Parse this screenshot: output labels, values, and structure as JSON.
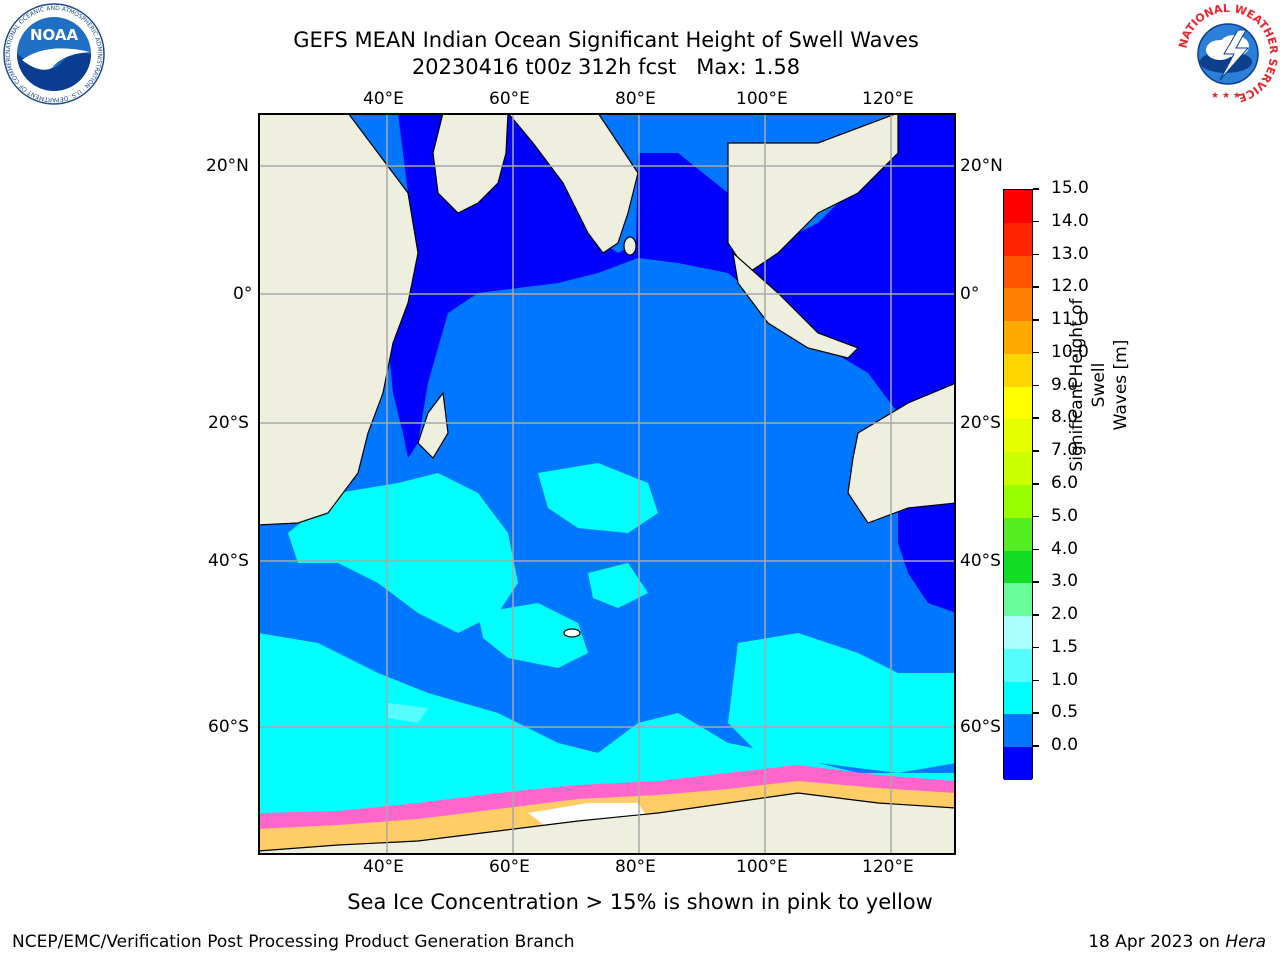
{
  "title": {
    "line1": "GEFS MEAN Indian Ocean Significant Height of Swell Waves",
    "line2": "20230416 t00z 312h fcst   Max: 1.58"
  },
  "map": {
    "lon_range": [
      20,
      130
    ],
    "lat_range": [
      -72,
      27
    ],
    "lon_ticks": [
      "40°E",
      "60°E",
      "80°E",
      "100°E",
      "120°E"
    ],
    "lat_ticks": [
      "20°N",
      "0°",
      "20°S",
      "40°S",
      "60°S"
    ],
    "land_color": "#efefdf",
    "sea_ice_colors": [
      "#ff66cc",
      "#ff99cc",
      "#ffcc66",
      "#ffd93d",
      "#ffffff"
    ]
  },
  "colorbar": {
    "label_line1": "Significant Height of Swell",
    "label_line2": "Waves [m]",
    "ticks": [
      "15.0",
      "14.0",
      "13.0",
      "12.0",
      "11.0",
      "10.0",
      "9.0",
      "8.0",
      "7.0",
      "6.0",
      "5.0",
      "4.0",
      "3.0",
      "2.0",
      "1.5",
      "1.0",
      "0.5",
      "0.0"
    ],
    "bins_top_to_bottom": [
      "#ff0000",
      "#ff2400",
      "#ff5500",
      "#ff7f00",
      "#ffaa00",
      "#ffd500",
      "#ffff00",
      "#e6ff00",
      "#ccff00",
      "#99ff00",
      "#55ee22",
      "#11dd22",
      "#66ff99",
      "#aaffff",
      "#55ffff",
      "#00ffff",
      "#0077ff",
      "#0000ff"
    ]
  },
  "annotation": "Sea Ice Concentration > 15% is shown in pink to yellow",
  "footer": {
    "left": "NCEP/EMC/Verification Post Processing Product Generation Branch",
    "right_prefix": "18 Apr 2023 on ",
    "right_host": "Hera"
  },
  "logos": {
    "noaa_text": "NOAA",
    "noaa_ring_text": "NATIONAL OCEANIC AND ATMOSPHERIC ADMINISTRATION · U.S. DEPARTMENT OF COMMERCE",
    "nws_ring_text": "NATIONAL WEATHER SERVICE"
  }
}
